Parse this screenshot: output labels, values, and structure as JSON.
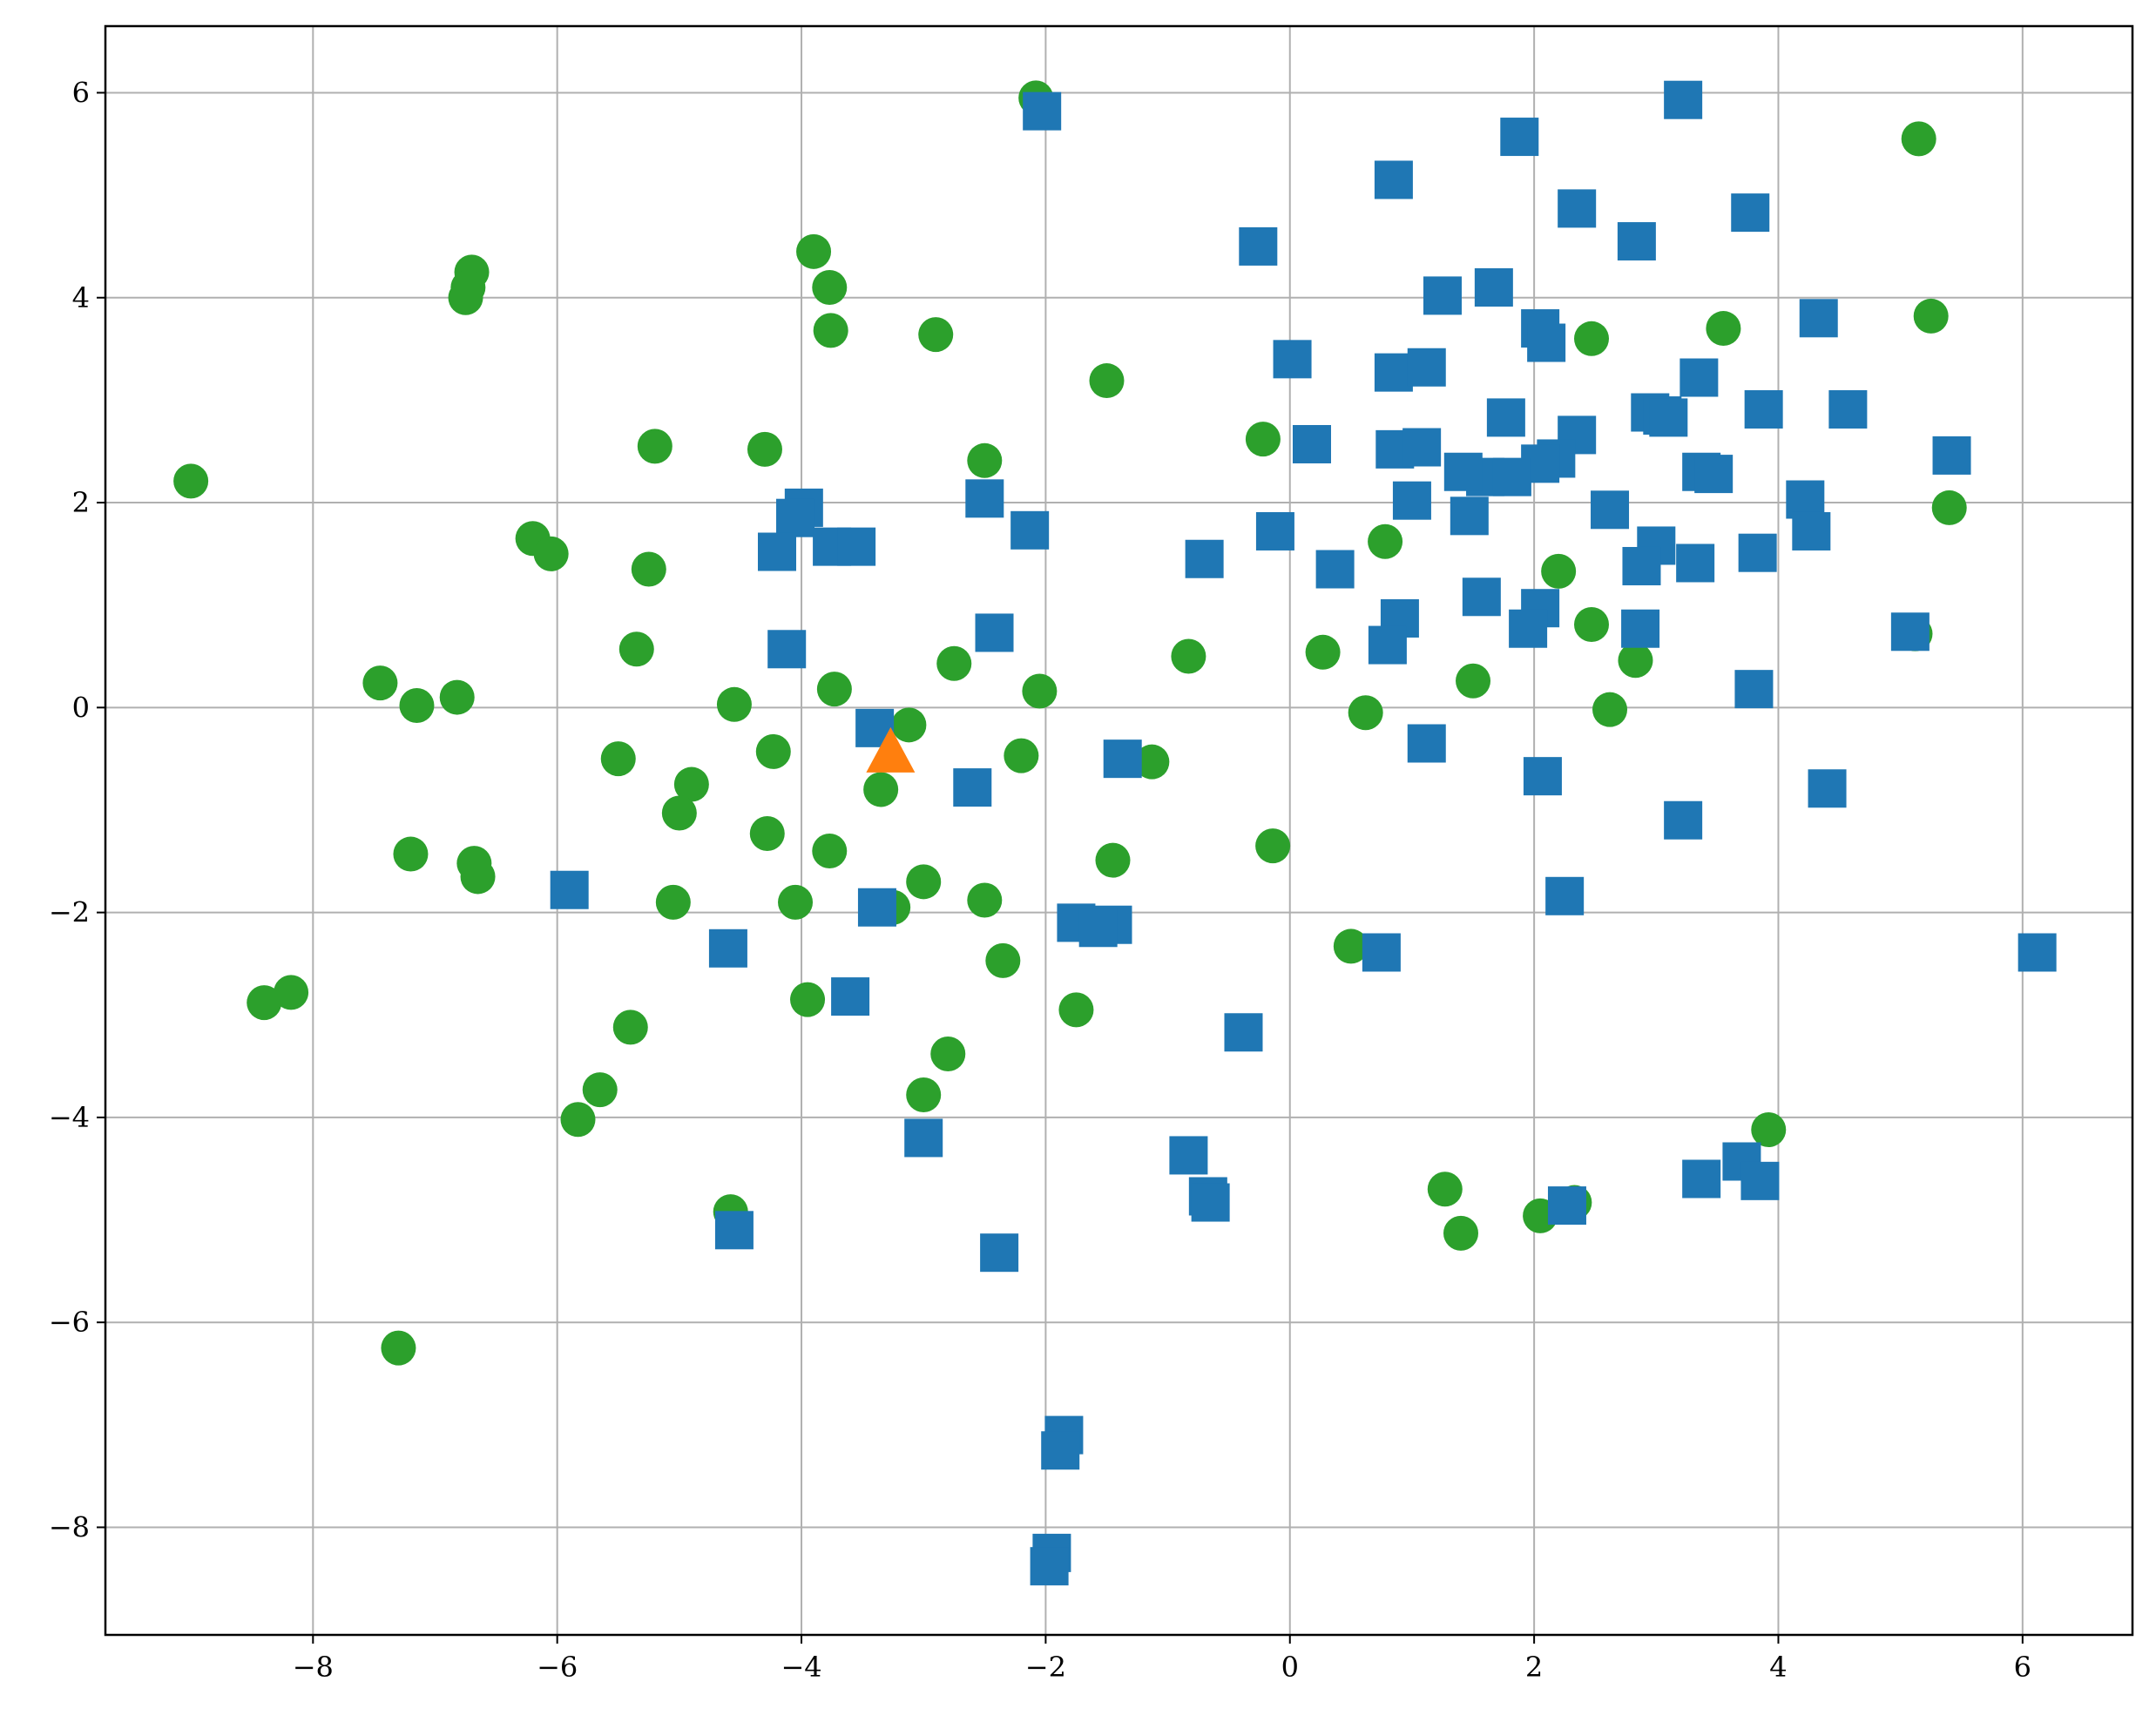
{
  "chart_data": {
    "type": "scatter",
    "title": "",
    "xlabel": "",
    "ylabel": "",
    "xlim": [
      -9.7,
      6.9
    ],
    "ylim": [
      -9.05,
      6.65
    ],
    "x_ticks": [
      -8,
      -6,
      -4,
      -2,
      0,
      2,
      4,
      6
    ],
    "x_tick_labels": [
      "−8",
      "−6",
      "−4",
      "−2",
      "0",
      "2",
      "4",
      "6"
    ],
    "y_ticks": [
      -8,
      -6,
      -4,
      -2,
      0,
      2,
      4,
      6
    ],
    "y_tick_labels": [
      "−8",
      "−6",
      "−4",
      "−2",
      "0",
      "2",
      "4",
      "6"
    ],
    "grid": true,
    "legend": "none",
    "series": [
      {
        "marker": "circle",
        "color": "#2ca02c",
        "points": [
          [
            -2.08,
            5.95
          ],
          [
            -6.7,
            4.25
          ],
          [
            -6.73,
            4.1
          ],
          [
            -6.75,
            4.0
          ],
          [
            -3.9,
            4.45
          ],
          [
            -3.77,
            4.1
          ],
          [
            -3.76,
            3.68
          ],
          [
            -2.9,
            3.64
          ],
          [
            -1.5,
            3.19
          ],
          [
            -9.0,
            2.21
          ],
          [
            -5.2,
            2.55
          ],
          [
            -4.3,
            2.52
          ],
          [
            -2.5,
            2.41
          ],
          [
            -0.22,
            2.62
          ],
          [
            -6.2,
            1.65
          ],
          [
            -6.05,
            1.5
          ],
          [
            -5.25,
            1.35
          ],
          [
            -7.45,
            0.24
          ],
          [
            -7.15,
            0.02
          ],
          [
            -6.82,
            0.1
          ],
          [
            -5.35,
            0.57
          ],
          [
            -4.55,
            0.03
          ],
          [
            -3.73,
            0.18
          ],
          [
            -2.75,
            0.43
          ],
          [
            -2.05,
            0.16
          ],
          [
            -3.12,
            -0.17
          ],
          [
            -5.5,
            -0.5
          ],
          [
            -4.23,
            -0.43
          ],
          [
            -4.9,
            -0.75
          ],
          [
            -5.0,
            -1.03
          ],
          [
            -3.35,
            -0.8
          ],
          [
            -2.2,
            -0.47
          ],
          [
            -1.13,
            -0.53
          ],
          [
            -0.83,
            0.5
          ],
          [
            -0.14,
            -1.35
          ],
          [
            -7.2,
            -1.43
          ],
          [
            -6.68,
            -1.52
          ],
          [
            -6.65,
            -1.65
          ],
          [
            -4.28,
            -1.23
          ],
          [
            -3.77,
            -1.4
          ],
          [
            -5.05,
            -1.9
          ],
          [
            -4.05,
            -1.9
          ],
          [
            -3.25,
            -1.95
          ],
          [
            -3.0,
            -1.7
          ],
          [
            -2.5,
            -1.88
          ],
          [
            -1.45,
            -1.49
          ],
          [
            -8.4,
            -2.88
          ],
          [
            -8.18,
            -2.78
          ],
          [
            -5.4,
            -3.12
          ],
          [
            -3.95,
            -2.85
          ],
          [
            -2.35,
            -2.47
          ],
          [
            -1.75,
            -2.95
          ],
          [
            -2.8,
            -3.38
          ],
          [
            -5.65,
            -3.73
          ],
          [
            -5.83,
            -4.02
          ],
          [
            -3.0,
            -3.78
          ],
          [
            -4.58,
            -4.92
          ],
          [
            -7.3,
            -6.25
          ],
          [
            0.27,
            0.54
          ],
          [
            0.62,
            -0.05
          ],
          [
            0.78,
            1.62
          ],
          [
            1.5,
            0.26
          ],
          [
            2.2,
            1.33
          ],
          [
            2.47,
            0.81
          ],
          [
            2.62,
            -0.02
          ],
          [
            2.83,
            0.46
          ],
          [
            2.47,
            3.6
          ],
          [
            3.55,
            3.7
          ],
          [
            5.15,
            5.55
          ],
          [
            5.25,
            3.82
          ],
          [
            5.4,
            1.95
          ],
          [
            5.12,
            0.72
          ],
          [
            0.5,
            -2.33
          ],
          [
            1.27,
            -4.7
          ],
          [
            1.4,
            -5.13
          ],
          [
            2.05,
            -4.96
          ],
          [
            2.33,
            -4.83
          ],
          [
            3.92,
            -4.12
          ]
        ]
      },
      {
        "marker": "square",
        "color": "#1f77b4",
        "points": [
          [
            -2.03,
            5.82
          ],
          [
            3.22,
            5.93
          ],
          [
            1.88,
            5.57
          ],
          [
            0.85,
            5.15
          ],
          [
            2.35,
            4.87
          ],
          [
            3.77,
            4.83
          ],
          [
            2.84,
            4.55
          ],
          [
            -0.26,
            4.5
          ],
          [
            1.25,
            4.02
          ],
          [
            1.67,
            4.1
          ],
          [
            4.33,
            3.8
          ],
          [
            2.05,
            3.7
          ],
          [
            2.1,
            3.56
          ],
          [
            0.02,
            3.4
          ],
          [
            0.85,
            3.27
          ],
          [
            1.12,
            3.32
          ],
          [
            3.35,
            3.22
          ],
          [
            2.95,
            2.88
          ],
          [
            3.05,
            2.85
          ],
          [
            3.1,
            2.83
          ],
          [
            3.88,
            2.91
          ],
          [
            4.57,
            2.91
          ],
          [
            5.42,
            2.46
          ],
          [
            1.77,
            2.83
          ],
          [
            0.18,
            2.57
          ],
          [
            0.86,
            2.52
          ],
          [
            1.08,
            2.54
          ],
          [
            2.35,
            2.66
          ],
          [
            2.18,
            2.43
          ],
          [
            2.05,
            2.38
          ],
          [
            1.6,
            2.25
          ],
          [
            1.82,
            2.25
          ],
          [
            1.42,
            2.3
          ],
          [
            3.37,
            2.3
          ],
          [
            3.47,
            2.28
          ],
          [
            4.22,
            2.03
          ],
          [
            4.27,
            1.72
          ],
          [
            -2.5,
            2.04
          ],
          [
            -3.98,
            1.95
          ],
          [
            -4.05,
            1.85
          ],
          [
            -3.75,
            1.57
          ],
          [
            -3.55,
            1.57
          ],
          [
            -4.2,
            1.52
          ],
          [
            -2.13,
            1.73
          ],
          [
            -0.12,
            1.72
          ],
          [
            1.0,
            2.02
          ],
          [
            1.47,
            1.87
          ],
          [
            2.62,
            1.93
          ],
          [
            3.0,
            1.58
          ],
          [
            2.88,
            1.38
          ],
          [
            3.32,
            1.41
          ],
          [
            3.83,
            1.51
          ],
          [
            0.37,
            1.35
          ],
          [
            -0.7,
            1.45
          ],
          [
            0.9,
            0.87
          ],
          [
            0.8,
            0.61
          ],
          [
            1.57,
            1.08
          ],
          [
            2.05,
            0.97
          ],
          [
            1.95,
            0.77
          ],
          [
            2.87,
            0.77
          ],
          [
            5.08,
            0.74
          ],
          [
            3.8,
            0.18
          ],
          [
            -2.42,
            0.73
          ],
          [
            -4.12,
            0.57
          ],
          [
            1.12,
            -0.35
          ],
          [
            2.07,
            -0.67
          ],
          [
            4.4,
            -0.79
          ],
          [
            3.22,
            -1.1
          ],
          [
            -3.4,
            -0.2
          ],
          [
            -1.37,
            -0.5
          ],
          [
            -2.6,
            -0.78
          ],
          [
            -5.9,
            -1.78
          ],
          [
            -3.38,
            -1.95
          ],
          [
            -1.75,
            -2.1
          ],
          [
            -1.45,
            -2.12
          ],
          [
            -1.57,
            -2.15
          ],
          [
            -4.6,
            -2.35
          ],
          [
            2.25,
            -1.84
          ],
          [
            0.75,
            -2.39
          ],
          [
            6.12,
            -2.39
          ],
          [
            -3.6,
            -2.82
          ],
          [
            -0.38,
            -3.17
          ],
          [
            -0.83,
            -4.37
          ],
          [
            -0.67,
            -4.77
          ],
          [
            -0.65,
            -4.83
          ],
          [
            -3.0,
            -4.2
          ],
          [
            -4.55,
            -5.1
          ],
          [
            -2.38,
            -5.32
          ],
          [
            3.37,
            -4.6
          ],
          [
            3.7,
            -4.43
          ],
          [
            3.85,
            -4.62
          ],
          [
            2.27,
            -4.86
          ],
          [
            -1.85,
            -7.1
          ],
          [
            -1.88,
            -7.25
          ],
          [
            -1.95,
            -8.25
          ],
          [
            -1.97,
            -8.38
          ]
        ]
      },
      {
        "marker": "triangle",
        "color": "#ff7f0e",
        "points": [
          [
            -3.27,
            -0.43
          ]
        ]
      }
    ]
  }
}
